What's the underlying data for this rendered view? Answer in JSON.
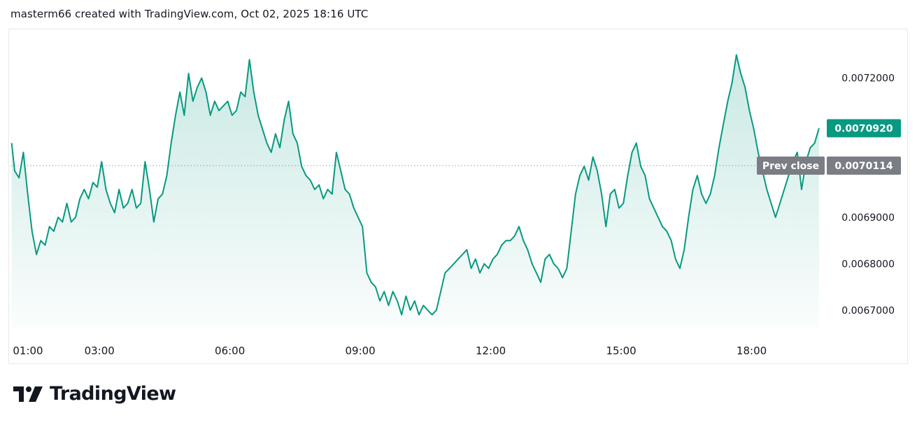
{
  "header": {
    "attribution": "masterm66 created with TradingView.com, Oct 02, 2025 18:16 UTC"
  },
  "brand": {
    "name": "TradingView"
  },
  "colors": {
    "line": "#089981",
    "fill_top": "rgba(8,153,129,0.22)",
    "fill_bottom": "rgba(8,153,129,0.02)",
    "last_price_bg": "#089981",
    "prev_close_bg": "#7a7d84",
    "axis_text": "#131722",
    "dotted": "#9598a1"
  },
  "chart_data": {
    "type": "area",
    "x_tick_labels": [
      "01:00",
      "03:00",
      "06:00",
      "09:00",
      "12:00",
      "15:00",
      "18:00"
    ],
    "y_tick_labels": [
      "0.0072000",
      "0.0069000",
      "0.0068000",
      "0.0067000"
    ],
    "y_tick_values": [
      0.0072,
      0.0069,
      0.0068,
      0.0067
    ],
    "ylim": [
      0.006662,
      0.007305
    ],
    "xlim_hours": [
      0.97,
      19.6
    ],
    "last_price": {
      "value": 0.007092,
      "label": "0.0070920"
    },
    "prev_close": {
      "value": 0.0070114,
      "label": "Prev close",
      "value_label": "0.0070114"
    },
    "series": [
      {
        "values": [
          [
            0.98,
            0.00706
          ],
          [
            1.05,
            0.007
          ],
          [
            1.15,
            0.006985
          ],
          [
            1.25,
            0.00704
          ],
          [
            1.35,
            0.00695
          ],
          [
            1.45,
            0.00687
          ],
          [
            1.55,
            0.00682
          ],
          [
            1.65,
            0.00685
          ],
          [
            1.75,
            0.00684
          ],
          [
            1.85,
            0.00688
          ],
          [
            1.95,
            0.00687
          ],
          [
            2.05,
            0.0069
          ],
          [
            2.15,
            0.00689
          ],
          [
            2.25,
            0.00693
          ],
          [
            2.35,
            0.00689
          ],
          [
            2.45,
            0.0069
          ],
          [
            2.55,
            0.00694
          ],
          [
            2.65,
            0.00696
          ],
          [
            2.75,
            0.00694
          ],
          [
            2.85,
            0.006975
          ],
          [
            2.95,
            0.006965
          ],
          [
            3.05,
            0.00702
          ],
          [
            3.15,
            0.00696
          ],
          [
            3.25,
            0.00693
          ],
          [
            3.35,
            0.00691
          ],
          [
            3.45,
            0.00696
          ],
          [
            3.55,
            0.00692
          ],
          [
            3.65,
            0.00693
          ],
          [
            3.75,
            0.00696
          ],
          [
            3.85,
            0.00692
          ],
          [
            3.95,
            0.00693
          ],
          [
            4.05,
            0.00702
          ],
          [
            4.15,
            0.00696
          ],
          [
            4.25,
            0.00689
          ],
          [
            4.35,
            0.00694
          ],
          [
            4.45,
            0.00695
          ],
          [
            4.55,
            0.00699
          ],
          [
            4.65,
            0.00706
          ],
          [
            4.75,
            0.00712
          ],
          [
            4.85,
            0.00717
          ],
          [
            4.95,
            0.00712
          ],
          [
            5.05,
            0.00721
          ],
          [
            5.15,
            0.00715
          ],
          [
            5.25,
            0.00718
          ],
          [
            5.35,
            0.0072
          ],
          [
            5.45,
            0.00717
          ],
          [
            5.55,
            0.00712
          ],
          [
            5.65,
            0.00715
          ],
          [
            5.75,
            0.00713
          ],
          [
            5.85,
            0.00714
          ],
          [
            5.95,
            0.00715
          ],
          [
            6.05,
            0.00712
          ],
          [
            6.15,
            0.00713
          ],
          [
            6.25,
            0.00717
          ],
          [
            6.35,
            0.00716
          ],
          [
            6.45,
            0.00724
          ],
          [
            6.55,
            0.00717
          ],
          [
            6.65,
            0.00712
          ],
          [
            6.75,
            0.00709
          ],
          [
            6.85,
            0.00706
          ],
          [
            6.95,
            0.00704
          ],
          [
            7.05,
            0.00708
          ],
          [
            7.15,
            0.00705
          ],
          [
            7.25,
            0.00711
          ],
          [
            7.35,
            0.00715
          ],
          [
            7.45,
            0.00708
          ],
          [
            7.55,
            0.00706
          ],
          [
            7.65,
            0.00701
          ],
          [
            7.75,
            0.00699
          ],
          [
            7.85,
            0.00698
          ],
          [
            7.95,
            0.00696
          ],
          [
            8.05,
            0.00697
          ],
          [
            8.15,
            0.00694
          ],
          [
            8.25,
            0.00696
          ],
          [
            8.35,
            0.00695
          ],
          [
            8.45,
            0.00704
          ],
          [
            8.55,
            0.007
          ],
          [
            8.65,
            0.00696
          ],
          [
            8.75,
            0.00695
          ],
          [
            8.85,
            0.00692
          ],
          [
            8.95,
            0.0069
          ],
          [
            9.05,
            0.00688
          ],
          [
            9.15,
            0.00678
          ],
          [
            9.25,
            0.00676
          ],
          [
            9.35,
            0.00675
          ],
          [
            9.45,
            0.00672
          ],
          [
            9.55,
            0.00674
          ],
          [
            9.65,
            0.00671
          ],
          [
            9.75,
            0.00674
          ],
          [
            9.85,
            0.00672
          ],
          [
            9.95,
            0.00669
          ],
          [
            10.05,
            0.00673
          ],
          [
            10.15,
            0.0067
          ],
          [
            10.25,
            0.00672
          ],
          [
            10.35,
            0.00669
          ],
          [
            10.45,
            0.00671
          ],
          [
            10.55,
            0.0067
          ],
          [
            10.65,
            0.00669
          ],
          [
            10.75,
            0.0067
          ],
          [
            10.85,
            0.00674
          ],
          [
            10.95,
            0.00678
          ],
          [
            11.05,
            0.00679
          ],
          [
            11.15,
            0.0068
          ],
          [
            11.25,
            0.00681
          ],
          [
            11.35,
            0.00682
          ],
          [
            11.45,
            0.00683
          ],
          [
            11.55,
            0.00679
          ],
          [
            11.65,
            0.00681
          ],
          [
            11.75,
            0.00678
          ],
          [
            11.85,
            0.0068
          ],
          [
            11.95,
            0.00679
          ],
          [
            12.05,
            0.00681
          ],
          [
            12.15,
            0.00682
          ],
          [
            12.25,
            0.00684
          ],
          [
            12.35,
            0.00685
          ],
          [
            12.45,
            0.00685
          ],
          [
            12.55,
            0.00686
          ],
          [
            12.65,
            0.00688
          ],
          [
            12.75,
            0.00685
          ],
          [
            12.85,
            0.00683
          ],
          [
            12.95,
            0.0068
          ],
          [
            13.05,
            0.00678
          ],
          [
            13.15,
            0.00676
          ],
          [
            13.25,
            0.00681
          ],
          [
            13.35,
            0.00682
          ],
          [
            13.45,
            0.0068
          ],
          [
            13.55,
            0.00679
          ],
          [
            13.65,
            0.00677
          ],
          [
            13.75,
            0.00679
          ],
          [
            13.85,
            0.00687
          ],
          [
            13.95,
            0.00695
          ],
          [
            14.05,
            0.00699
          ],
          [
            14.15,
            0.00701
          ],
          [
            14.25,
            0.00698
          ],
          [
            14.35,
            0.00703
          ],
          [
            14.45,
            0.007
          ],
          [
            14.55,
            0.00695
          ],
          [
            14.65,
            0.00688
          ],
          [
            14.75,
            0.00695
          ],
          [
            14.85,
            0.00696
          ],
          [
            14.95,
            0.00692
          ],
          [
            15.05,
            0.00693
          ],
          [
            15.15,
            0.00699
          ],
          [
            15.25,
            0.00704
          ],
          [
            15.35,
            0.00706
          ],
          [
            15.45,
            0.00701
          ],
          [
            15.55,
            0.00699
          ],
          [
            15.65,
            0.00694
          ],
          [
            15.75,
            0.00692
          ],
          [
            15.85,
            0.0069
          ],
          [
            15.95,
            0.00688
          ],
          [
            16.05,
            0.00687
          ],
          [
            16.15,
            0.00685
          ],
          [
            16.25,
            0.00681
          ],
          [
            16.35,
            0.00679
          ],
          [
            16.45,
            0.00683
          ],
          [
            16.55,
            0.0069
          ],
          [
            16.65,
            0.00696
          ],
          [
            16.75,
            0.00699
          ],
          [
            16.85,
            0.00695
          ],
          [
            16.95,
            0.00693
          ],
          [
            17.05,
            0.00695
          ],
          [
            17.15,
            0.00699
          ],
          [
            17.25,
            0.00705
          ],
          [
            17.35,
            0.0071
          ],
          [
            17.45,
            0.00715
          ],
          [
            17.55,
            0.00719
          ],
          [
            17.65,
            0.00725
          ],
          [
            17.75,
            0.00721
          ],
          [
            17.85,
            0.00718
          ],
          [
            17.95,
            0.00713
          ],
          [
            18.05,
            0.00709
          ],
          [
            18.15,
            0.00704
          ],
          [
            18.25,
            0.007
          ],
          [
            18.35,
            0.00696
          ],
          [
            18.45,
            0.00693
          ],
          [
            18.55,
            0.0069
          ],
          [
            18.65,
            0.00693
          ],
          [
            18.75,
            0.00696
          ],
          [
            18.85,
            0.00699
          ],
          [
            18.95,
            0.00702
          ],
          [
            19.05,
            0.00704
          ],
          [
            19.15,
            0.00696
          ],
          [
            19.25,
            0.00702
          ],
          [
            19.35,
            0.00705
          ],
          [
            19.45,
            0.00706
          ],
          [
            19.55,
            0.007092
          ]
        ]
      }
    ]
  }
}
